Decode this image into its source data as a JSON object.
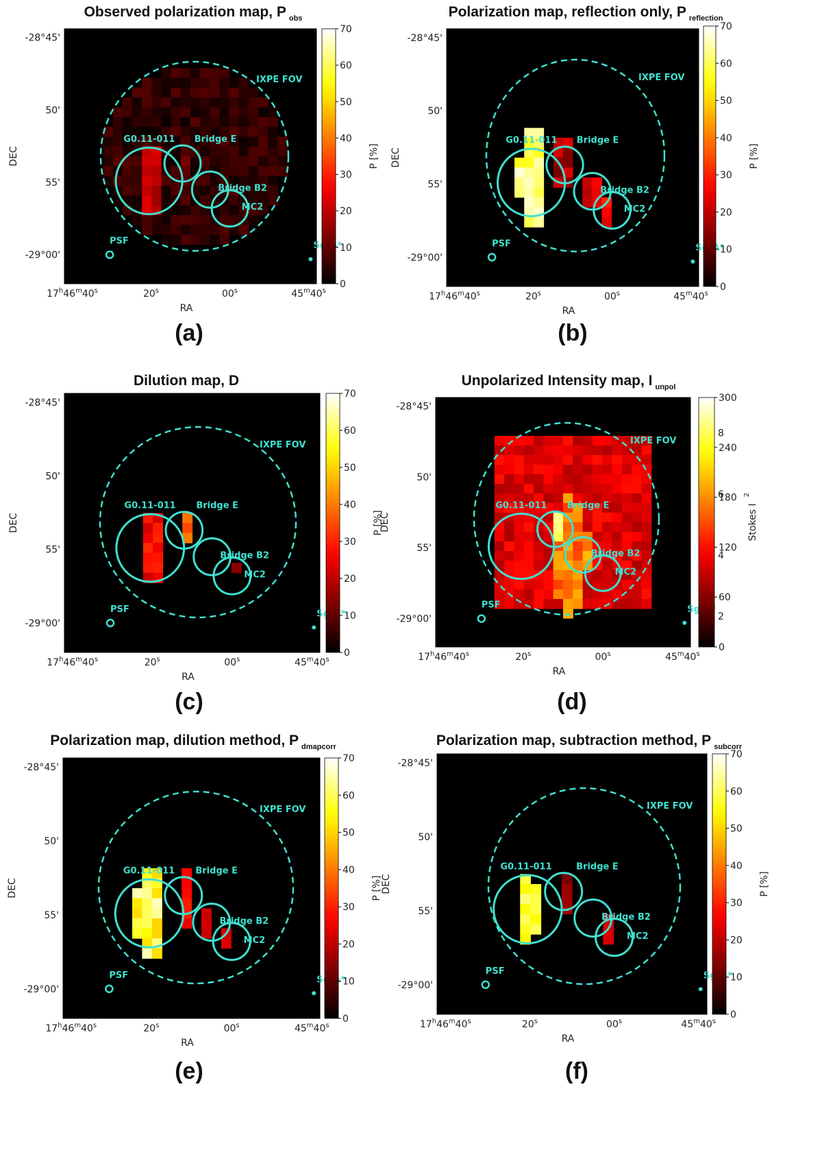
{
  "figure": {
    "colors": {
      "region": "#40e0d0",
      "background": "#000000"
    },
    "ra_ticks": [
      {
        "main": "17",
        "h": "h",
        "m_val": "46",
        "m": "m",
        "s_val": "40",
        "s": "s"
      },
      {
        "main": "20",
        "s": "s"
      },
      {
        "main": "00",
        "s": "s"
      },
      {
        "main": "45",
        "m": "m",
        "s_val": "40",
        "s": "s"
      }
    ],
    "dec_ticks": [
      "-28°45'",
      "50'",
      "55'",
      "-29°00'"
    ],
    "xlabel": "RA",
    "ylabel": "DEC",
    "regions": [
      "IXPE FOV",
      "G0.11-011",
      "Bridge E",
      "Bridge B2",
      "MC2",
      "PSF",
      "SgrA*"
    ]
  },
  "chart_data": [
    {
      "type": "heatmap",
      "panel": "(a)",
      "title": "Observed polarization map, P",
      "title_sub": "obs",
      "colorbar_label": "P [%]",
      "colorbar_ticks": [
        "70",
        "60",
        "50",
        "40",
        "30",
        "20",
        "10",
        "0"
      ],
      "vmin": 0,
      "vmax": 70,
      "data": {
        "base": {
          "v": 5,
          "j": 4,
          "cov": "fov"
        },
        "blobs": [
          {
            "x": 20,
            "y": 54.9,
            "r": 2.6,
            "v": 20,
            "j": 4
          },
          {
            "x": 12,
            "y": 53.8,
            "r": 1.2,
            "v": 12,
            "j": 4
          }
        ]
      }
    },
    {
      "type": "heatmap",
      "panel": "(b)",
      "title": "Polarization map, reflection only, P",
      "title_sub": "reflection",
      "colorbar_label": "P [%]",
      "colorbar_ticks": [
        "70",
        "60",
        "50",
        "40",
        "30",
        "20",
        "10",
        "0"
      ],
      "vmin": 0,
      "vmax": 70,
      "data": {
        "base": null,
        "blobs": [
          {
            "x": 20,
            "y": 54.8,
            "r": 3.6,
            "v": 62,
            "j": 6
          },
          {
            "x": 12.5,
            "y": 53.6,
            "r": 2.2,
            "v": 18,
            "j": 6
          },
          {
            "x": 5,
            "y": 55.6,
            "r": 1.5,
            "v": 24,
            "j": 5
          },
          {
            "x": 0.5,
            "y": 56.9,
            "r": 1.5,
            "v": 27,
            "j": 5
          }
        ]
      }
    },
    {
      "type": "heatmap",
      "panel": "(c)",
      "title": "Dilution map, D",
      "title_sub": "",
      "colorbar_label": "P [%]",
      "colorbar_ticks": [
        "70",
        "60",
        "50",
        "40",
        "30",
        "20",
        "10",
        "0"
      ],
      "vmin": 0,
      "vmax": 70,
      "data": {
        "base": null,
        "blobs": [
          {
            "x": 20,
            "y": 54.9,
            "r": 2.5,
            "v": 26,
            "j": 5
          },
          {
            "x": 11.5,
            "y": 53.7,
            "r": 1.2,
            "v": 38,
            "j": 4
          },
          {
            "x": 5,
            "y": 55.5,
            "r": 1.1,
            "v": 26,
            "j": 4
          },
          {
            "x": 0,
            "y": 56.4,
            "r": 1.1,
            "v": 18,
            "j": 4
          }
        ]
      }
    },
    {
      "type": "heatmap",
      "panel": "(d)",
      "title": "Unpolarized  Intensity map, I",
      "title_sub": "unpol",
      "colorbar_label": "Stokes I",
      "colorbar_label_sup": "2",
      "colorbar_ticks": [
        "300",
        "240",
        "180",
        "120",
        "60",
        "0"
      ],
      "colorbar_ghost": [
        "8",
        "6",
        "4",
        "2"
      ],
      "vmin": 0,
      "vmax": 300,
      "data": {
        "base": {
          "v": 100,
          "j": 22,
          "cov": "square"
        },
        "blobs": [
          {
            "x": 8,
            "y": 55.5,
            "r": 4.2,
            "v": 170,
            "j": 28
          },
          {
            "x": 11.5,
            "y": 53.7,
            "r": 1.2,
            "v": 260,
            "j": 10
          },
          {
            "x": 5,
            "y": 55.4,
            "r": 1.2,
            "v": 200,
            "j": 15
          },
          {
            "x": 20,
            "y": 55,
            "r": 2.8,
            "v": 110,
            "j": 10
          }
        ]
      }
    },
    {
      "type": "heatmap",
      "panel": "(e)",
      "title": "Polarization map, dilution method, P",
      "title_sub": "dmapcorr",
      "colorbar_label": "P [%]",
      "colorbar_ticks": [
        "70",
        "60",
        "50",
        "40",
        "30",
        "20",
        "10",
        "0"
      ],
      "vmin": 0,
      "vmax": 70,
      "data": {
        "base": null,
        "blobs": [
          {
            "x": 20.5,
            "y": 54.9,
            "r": 3.3,
            "v": 58,
            "j": 10
          },
          {
            "x": 11.5,
            "y": 53.9,
            "r": 1.8,
            "v": 28,
            "j": 6
          },
          {
            "x": 5.5,
            "y": 55.6,
            "r": 1.5,
            "v": 26,
            "j": 6
          },
          {
            "x": 0.3,
            "y": 56.7,
            "r": 1.3,
            "v": 32,
            "j": 12
          }
        ]
      }
    },
    {
      "type": "heatmap",
      "panel": "(f)",
      "title": "Polarization map, subtraction method, P",
      "title_sub": "subcorr",
      "colorbar_label": "P [%]",
      "colorbar_ticks": [
        "70",
        "60",
        "50",
        "40",
        "30",
        "20",
        "10",
        "0"
      ],
      "vmin": 0,
      "vmax": 70,
      "data": {
        "base": null,
        "blobs": [
          {
            "x": 20.5,
            "y": 54.8,
            "r": 2.5,
            "v": 58,
            "j": 5
          },
          {
            "x": 11.5,
            "y": 53.8,
            "r": 1.2,
            "v": 14,
            "j": 3
          },
          {
            "x": 5,
            "y": 55.5,
            "r": 1.1,
            "v": 20,
            "j": 4
          },
          {
            "x": 1.5,
            "y": 56.3,
            "r": 0.9,
            "v": 22,
            "j": 4
          }
        ]
      }
    }
  ]
}
